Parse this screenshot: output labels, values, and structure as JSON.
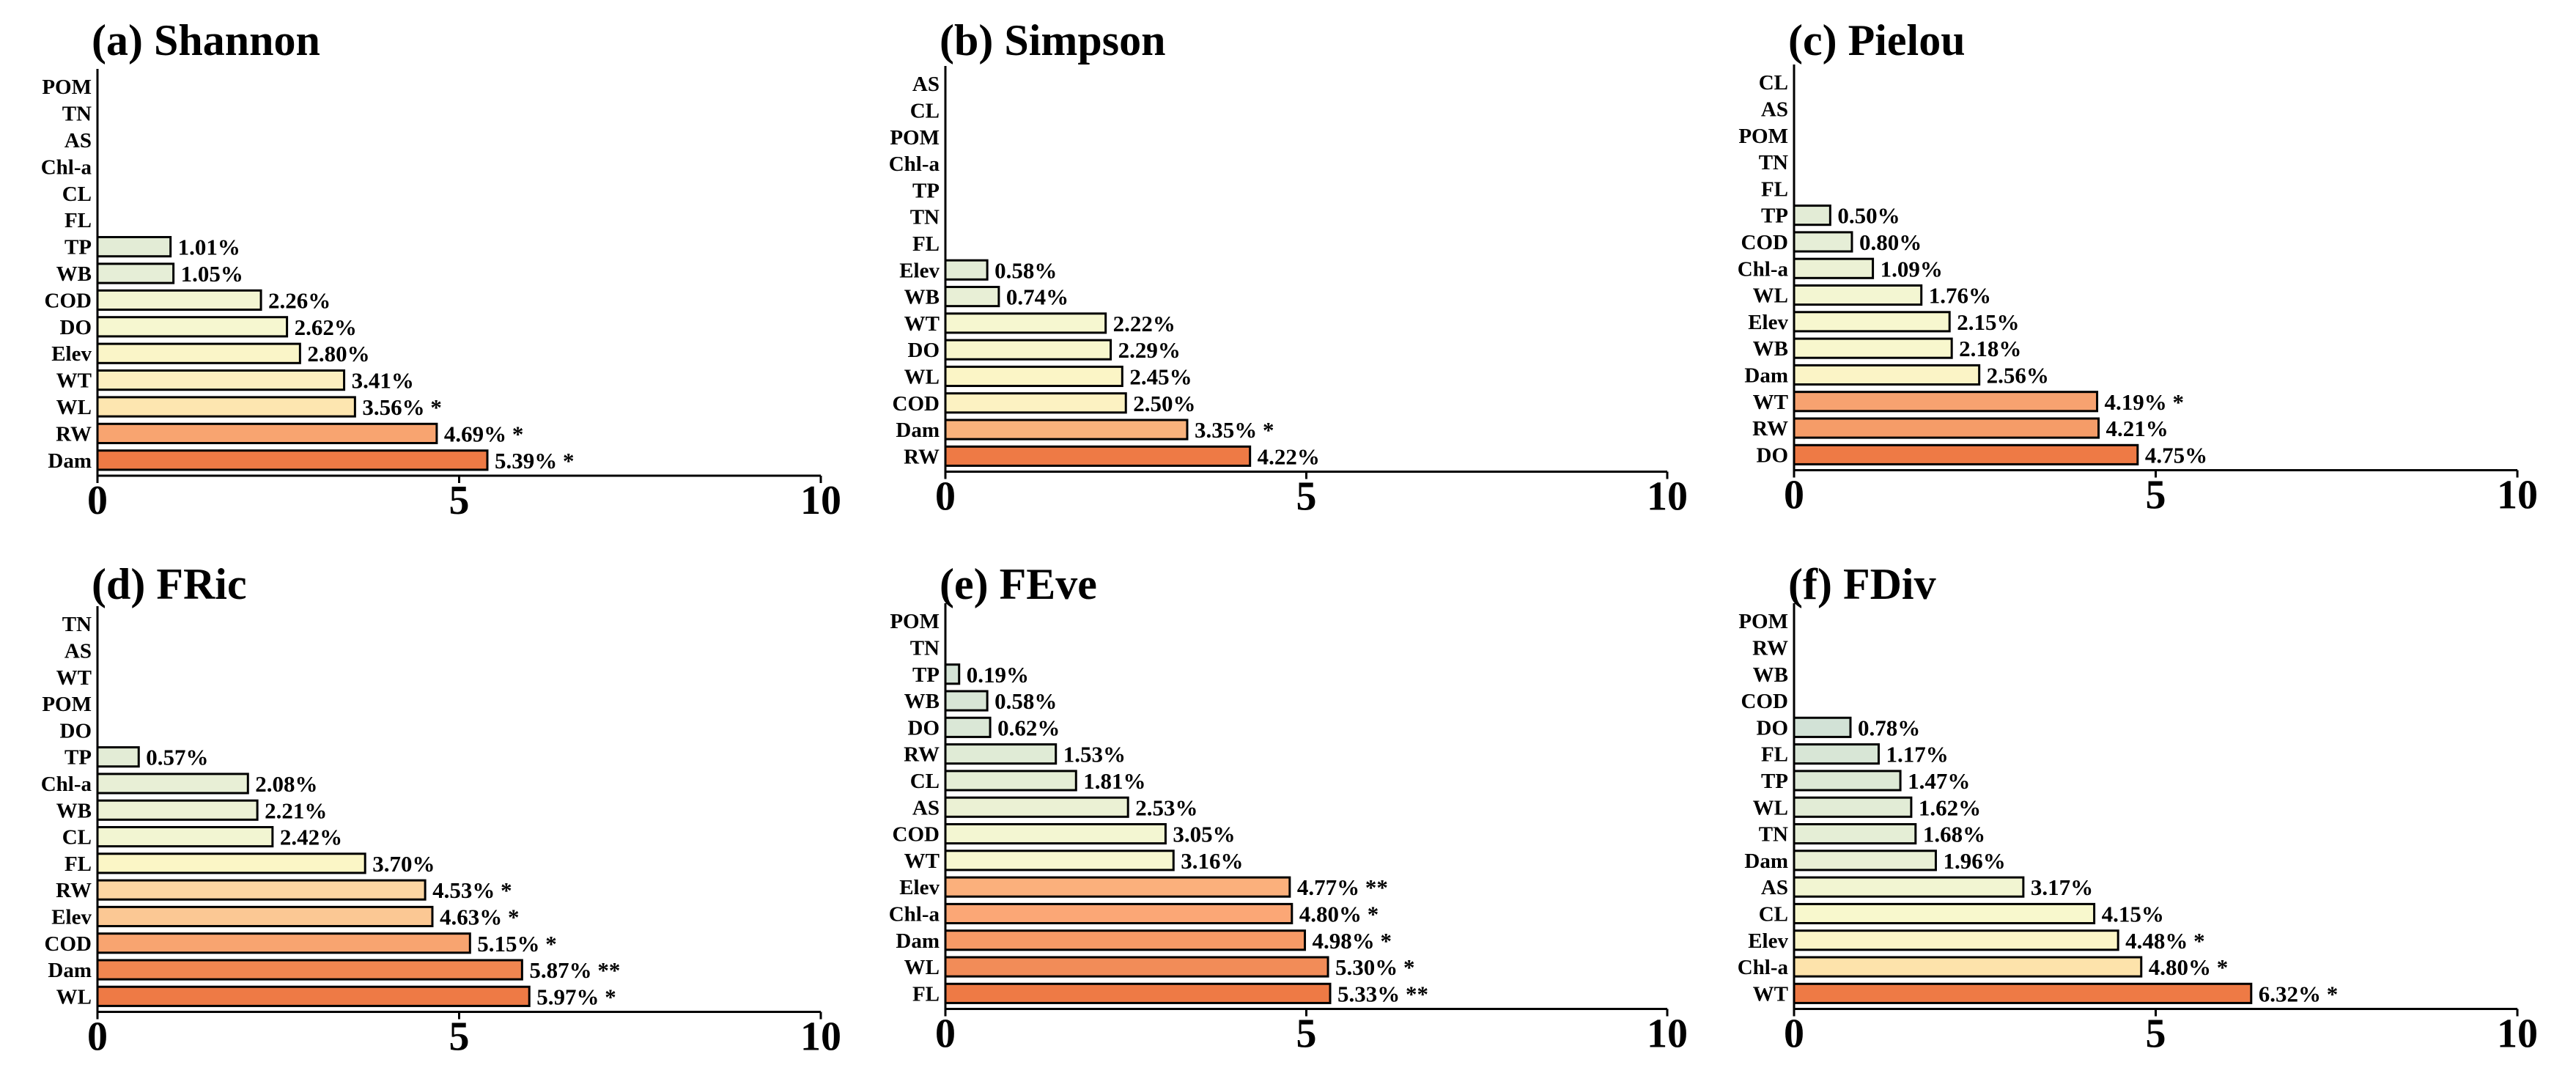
{
  "chart_data": [
    {
      "type": "bar",
      "orientation": "horizontal",
      "title": "(a) Shannon",
      "xlim": [
        0,
        10
      ],
      "xticks": [
        "0",
        "5",
        "10"
      ],
      "categories": [
        "POM",
        "TN",
        "AS",
        "Chl-a",
        "CL",
        "FL",
        "TP",
        "WB",
        "COD",
        "DO",
        "Elev",
        "WT",
        "WL",
        "RW",
        "Dam"
      ],
      "values": [
        0,
        0,
        0,
        0,
        0,
        0,
        1.01,
        1.05,
        2.26,
        2.62,
        2.8,
        3.41,
        3.56,
        4.69,
        5.39
      ],
      "labels": [
        "",
        "",
        "",
        "",
        "",
        "",
        "1.01%",
        "1.05%",
        "2.26%",
        "2.62%",
        "2.80%",
        "3.41%",
        "3.56% *",
        "4.69% *",
        "5.39% *"
      ],
      "colors": [
        "",
        "",
        "",
        "",
        "",
        "",
        "#e3ecd6",
        "#e6eed7",
        "#f3f6d2",
        "#f6f7d0",
        "#faf5c8",
        "#fcefc0",
        "#fde6b0",
        "#f8a470",
        "#ee7a45"
      ]
    },
    {
      "type": "bar",
      "orientation": "horizontal",
      "title": "(b) Simpson",
      "xlim": [
        0,
        10
      ],
      "xticks": [
        "0",
        "5",
        "10"
      ],
      "categories": [
        "AS",
        "CL",
        "POM",
        "Chl-a",
        "TP",
        "TN",
        "FL",
        "Elev",
        "WB",
        "WT",
        "DO",
        "WL",
        "COD",
        "Dam",
        "RW"
      ],
      "values": [
        0,
        0,
        0,
        0,
        0,
        0,
        0,
        0.58,
        0.74,
        2.22,
        2.29,
        2.45,
        2.5,
        3.35,
        4.22
      ],
      "labels": [
        "",
        "",
        "",
        "",
        "",
        "",
        "",
        "0.58%",
        "0.74%",
        "2.22%",
        "2.29%",
        "2.45%",
        "2.50%",
        "3.35% *",
        "4.22%"
      ],
      "colors": [
        "",
        "",
        "",
        "",
        "",
        "",
        "",
        "#e3ecd6",
        "#e8efd6",
        "#f6f7d0",
        "#f8f7cd",
        "#fbf5c6",
        "#fcf2c2",
        "#f9b27c",
        "#ee7a45"
      ]
    },
    {
      "type": "bar",
      "orientation": "horizontal",
      "title": "(c) Pielou",
      "xlim": [
        0,
        10
      ],
      "xticks": [
        "0",
        "5",
        "10"
      ],
      "categories": [
        "CL",
        "AS",
        "POM",
        "TN",
        "FL",
        "TP",
        "COD",
        "Chl-a",
        "WL",
        "Elev",
        "WB",
        "Dam",
        "WT",
        "RW",
        "DO"
      ],
      "values": [
        0,
        0,
        0,
        0,
        0,
        0.5,
        0.8,
        1.09,
        1.76,
        2.15,
        2.18,
        2.56,
        4.19,
        4.21,
        4.75
      ],
      "labels": [
        "",
        "",
        "",
        "",
        "",
        "0.50%",
        "0.80%",
        "1.09%",
        "1.76%",
        "2.15%",
        "2.18%",
        "2.56%",
        "4.19% *",
        "4.21%",
        "4.75%"
      ],
      "colors": [
        "",
        "",
        "",
        "",
        "",
        "#e3ecd6",
        "#e6eed7",
        "#ecf1d5",
        "#f3f6d2",
        "#f7f7cf",
        "#f8f7cd",
        "#fbf4c6",
        "#f7a270",
        "#f59c68",
        "#ee7a45"
      ]
    },
    {
      "type": "bar",
      "orientation": "horizontal",
      "title": "(d) FRic",
      "xlim": [
        0,
        10
      ],
      "xticks": [
        "0",
        "5",
        "10"
      ],
      "categories": [
        "TN",
        "AS",
        "WT",
        "POM",
        "DO",
        "TP",
        "Chl-a",
        "WB",
        "CL",
        "FL",
        "RW",
        "Elev",
        "COD",
        "Dam",
        "WL"
      ],
      "values": [
        0,
        0,
        0,
        0,
        0,
        0.57,
        2.08,
        2.21,
        2.42,
        3.7,
        4.53,
        4.63,
        5.15,
        5.87,
        5.97
      ],
      "labels": [
        "",
        "",
        "",
        "",
        "",
        "0.57%",
        "2.08%",
        "2.21%",
        "2.42%",
        "3.70%",
        "4.53% *",
        "4.63% *",
        "5.15% *",
        "5.87% **",
        "5.97% *"
      ],
      "colors": [
        "",
        "",
        "",
        "",
        "",
        "#e3ecd6",
        "#e8efd6",
        "#ecf1d5",
        "#f2f5d2",
        "#fbf6c6",
        "#fcd6a3",
        "#fbc894",
        "#f8a470",
        "#f18650",
        "#ee7a45"
      ]
    },
    {
      "type": "bar",
      "orientation": "horizontal",
      "title": "(e) FEve",
      "xlim": [
        0,
        10
      ],
      "xticks": [
        "0",
        "5",
        "10"
      ],
      "categories": [
        "POM",
        "TN",
        "TP",
        "WB",
        "DO",
        "RW",
        "CL",
        "AS",
        "COD",
        "WT",
        "Elev",
        "Chl-a",
        "Dam",
        "WL",
        "FL"
      ],
      "values": [
        0,
        0,
        0.19,
        0.58,
        0.62,
        1.53,
        1.81,
        2.53,
        3.05,
        3.16,
        4.77,
        4.8,
        4.98,
        5.3,
        5.33
      ],
      "labels": [
        "",
        "",
        "0.19%",
        "0.58%",
        "0.62%",
        "1.53%",
        "1.81%",
        "2.53%",
        "3.05%",
        "3.16%",
        "4.77% **",
        "4.80% *",
        "4.98% *",
        "5.30% *",
        "5.33% **"
      ],
      "colors": [
        "",
        "",
        "#d4e3d6",
        "#d8e6d6",
        "#dae7d6",
        "#e0ebd6",
        "#e5eed6",
        "#ebf1d4",
        "#f3f6d2",
        "#f6f7cf",
        "#fbb07c",
        "#fba776",
        "#f79a66",
        "#f28c58",
        "#ee7a45"
      ]
    },
    {
      "type": "bar",
      "orientation": "horizontal",
      "title": "(f) FDiv",
      "xlim": [
        0,
        10
      ],
      "xticks": [
        "0",
        "5",
        "10"
      ],
      "categories": [
        "POM",
        "RW",
        "WB",
        "COD",
        "DO",
        "FL",
        "TP",
        "WL",
        "TN",
        "Dam",
        "AS",
        "CL",
        "Elev",
        "Chl-a",
        "WT"
      ],
      "values": [
        0,
        0,
        0,
        0,
        0.78,
        1.17,
        1.47,
        1.62,
        1.68,
        1.96,
        3.17,
        4.15,
        4.48,
        4.8,
        6.32
      ],
      "labels": [
        "",
        "",
        "",
        "",
        "0.78%",
        "1.17%",
        "1.47%",
        "1.62%",
        "1.68%",
        "1.96%",
        "3.17%",
        "4.15%",
        "4.48% *",
        "4.80% *",
        "6.32% *"
      ],
      "colors": [
        "",
        "",
        "",
        "",
        "#d2e2d6",
        "#d8e6d6",
        "#dde9d6",
        "#e2ecd6",
        "#e5eed6",
        "#eaf0d5",
        "#f2f5d2",
        "#f8f8cd",
        "#fbf5c6",
        "#fde3ab",
        "#ee7a45"
      ]
    }
  ]
}
